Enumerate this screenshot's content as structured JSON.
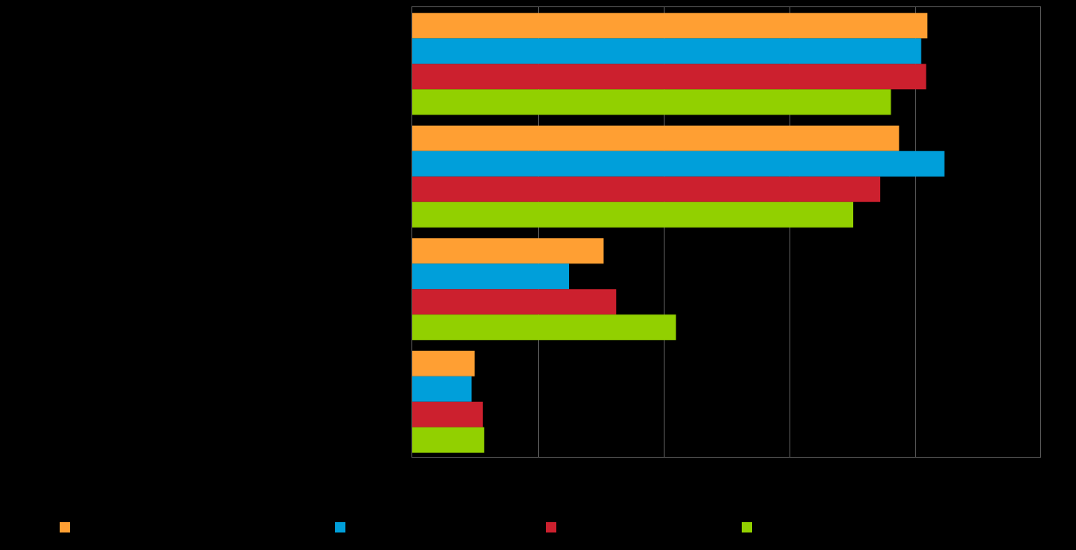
{
  "chart_data": {
    "type": "bar",
    "orientation": "horizontal",
    "title": "",
    "xlabel": "",
    "ylabel": "",
    "xlim": [
      0,
      100
    ],
    "grid": true,
    "legend_position": "bottom",
    "categories": [
      "",
      "",
      "",
      ""
    ],
    "series": [
      {
        "color": "#FF9F33",
        "values": [
          82,
          77.5,
          30.5,
          10
        ]
      },
      {
        "color": "#009FDA",
        "values": [
          81,
          84.7,
          25,
          9.5
        ]
      },
      {
        "color": "#CC202E",
        "values": [
          81.8,
          74.5,
          32.5,
          11.3
        ]
      },
      {
        "color": "#92D000",
        "values": [
          76.2,
          70.2,
          42,
          11.5
        ]
      }
    ]
  }
}
